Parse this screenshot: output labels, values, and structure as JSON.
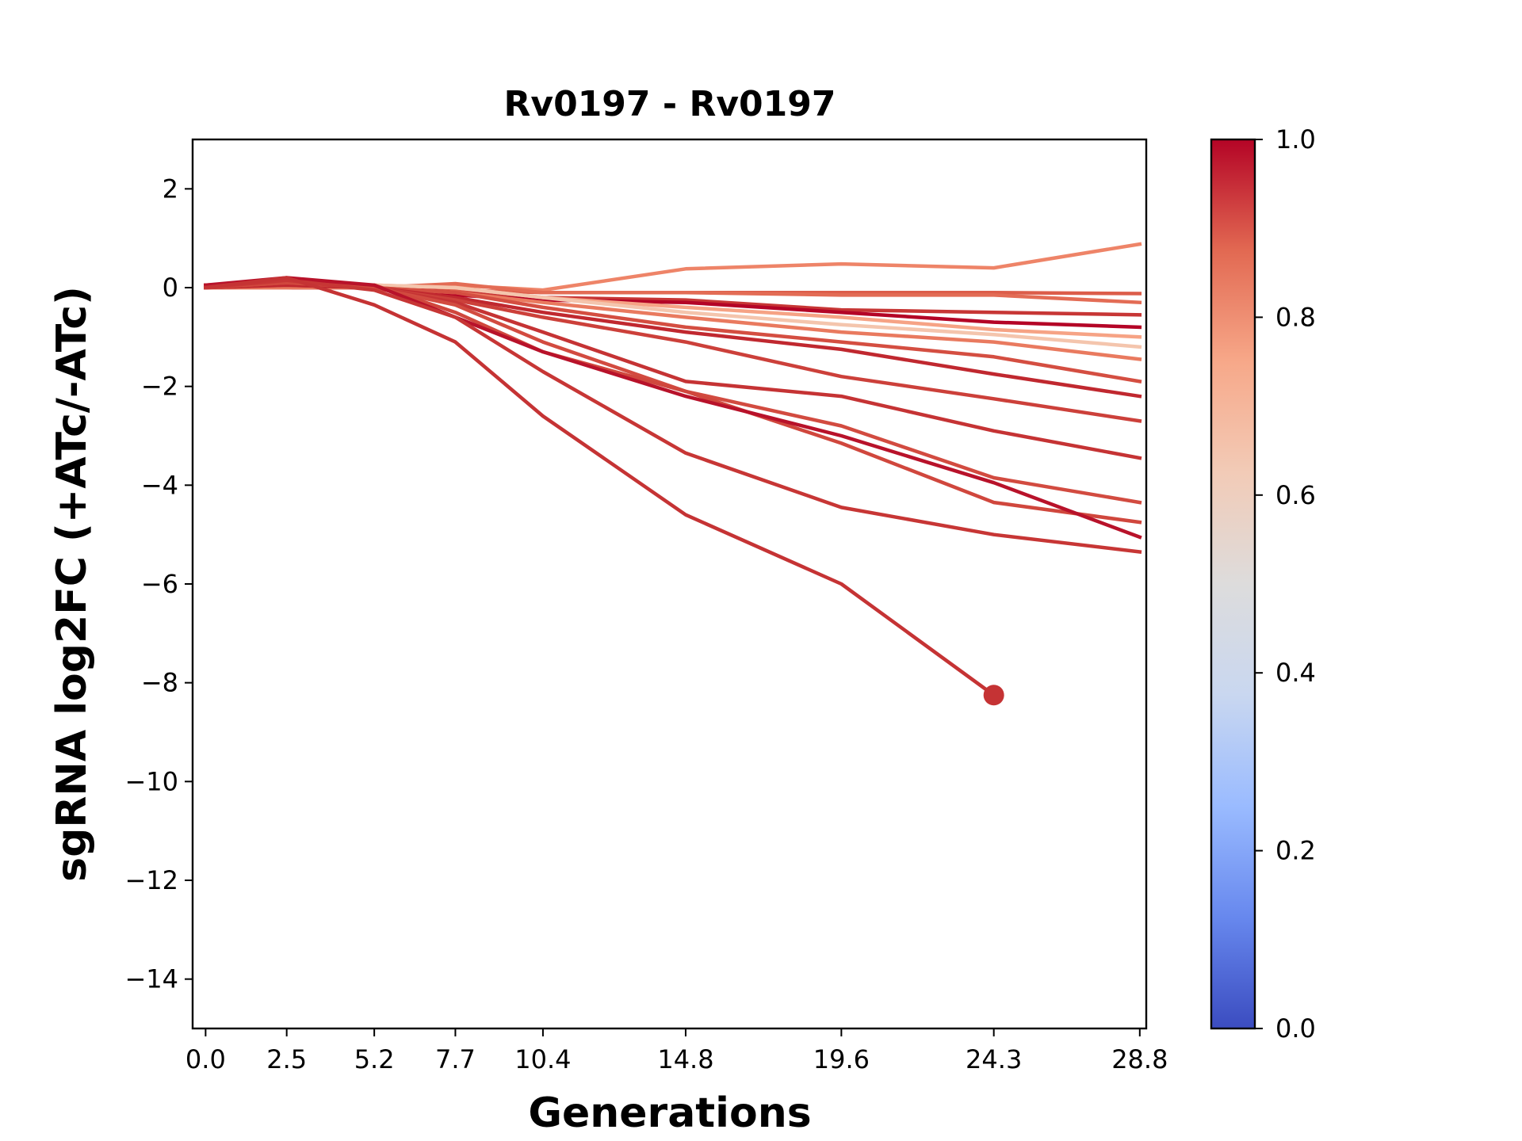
{
  "chart_data": {
    "type": "line",
    "title": "Rv0197 - Rv0197",
    "xlabel": "Generations",
    "ylabel": "sgRNA log2FC (+ATc/-ATc)",
    "x": [
      0.0,
      2.5,
      5.2,
      7.7,
      10.4,
      14.8,
      19.6,
      24.3,
      28.8
    ],
    "x_tick_labels": [
      "0.0",
      "2.5",
      "5.2",
      "7.7",
      "10.4",
      "14.8",
      "19.6",
      "24.3",
      "28.8"
    ],
    "ylim": [
      -15,
      3
    ],
    "y_ticks": [
      2,
      0,
      -2,
      -4,
      -6,
      -8,
      -10,
      -12,
      -14
    ],
    "y_tick_labels": [
      "2",
      "0",
      "−2",
      "−4",
      "−6",
      "−8",
      "−10",
      "−12",
      "−14"
    ],
    "grid": false,
    "legend": "none",
    "series": [
      {
        "color": "#ee8468",
        "values": [
          0.0,
          0.05,
          0.0,
          0.05,
          -0.05,
          0.38,
          0.48,
          0.4,
          0.88
        ]
      },
      {
        "color": "#dc5d4a",
        "values": [
          0.05,
          0.1,
          0.0,
          -0.05,
          -0.1,
          -0.1,
          -0.1,
          -0.1,
          -0.12
        ]
      },
      {
        "color": "#e36c55",
        "values": [
          0.0,
          0.0,
          0.0,
          0.08,
          -0.1,
          -0.1,
          -0.15,
          -0.15,
          -0.3
        ]
      },
      {
        "color": "#c73635",
        "values": [
          0.05,
          0.05,
          0.05,
          -0.1,
          -0.2,
          -0.25,
          -0.45,
          -0.5,
          -0.55
        ]
      },
      {
        "color": "#b40426",
        "values": [
          0.0,
          0.0,
          0.0,
          -0.15,
          -0.25,
          -0.3,
          -0.5,
          -0.7,
          -0.8
        ]
      },
      {
        "color": "#f6a385",
        "values": [
          0.0,
          0.0,
          0.05,
          0.0,
          -0.2,
          -0.4,
          -0.6,
          -0.85,
          -1.0
        ]
      },
      {
        "color": "#f4c5ad",
        "values": [
          0.0,
          0.0,
          0.05,
          0.0,
          -0.2,
          -0.5,
          -0.75,
          -0.95,
          -1.2
        ]
      },
      {
        "color": "#e97a5f",
        "values": [
          0.0,
          0.0,
          0.0,
          -0.1,
          -0.3,
          -0.6,
          -0.9,
          -1.1,
          -1.45
        ]
      },
      {
        "color": "#d44e41",
        "values": [
          0.0,
          0.05,
          0.0,
          -0.1,
          -0.4,
          -0.8,
          -1.1,
          -1.4,
          -1.9
        ]
      },
      {
        "color": "#c0282f",
        "values": [
          0.0,
          0.05,
          0.0,
          -0.2,
          -0.5,
          -0.9,
          -1.25,
          -1.75,
          -2.2
        ]
      },
      {
        "color": "#cc403a",
        "values": [
          0.0,
          0.1,
          0.0,
          -0.25,
          -0.6,
          -1.1,
          -1.8,
          -2.25,
          -2.7
        ]
      },
      {
        "color": "#c53334",
        "values": [
          0.05,
          0.15,
          0.0,
          -0.3,
          -0.9,
          -1.9,
          -2.2,
          -2.9,
          -3.45
        ]
      },
      {
        "color": "#d24b40",
        "values": [
          0.0,
          0.1,
          0.0,
          -0.35,
          -1.1,
          -2.1,
          -2.8,
          -3.85,
          -4.35
        ]
      },
      {
        "color": "#d0473d",
        "values": [
          0.0,
          0.1,
          0.05,
          -0.5,
          -1.3,
          -2.1,
          -3.15,
          -4.35,
          -4.75
        ]
      },
      {
        "color": "#b8122a",
        "values": [
          0.05,
          0.2,
          0.05,
          -0.6,
          -1.3,
          -2.2,
          -3.0,
          -3.95,
          -5.05
        ]
      },
      {
        "color": "#c73635",
        "values": [
          0.0,
          0.15,
          -0.05,
          -0.6,
          -1.7,
          -3.35,
          -4.45,
          -5.0,
          -5.35
        ]
      },
      {
        "color": "#c53334",
        "values": [
          0.0,
          0.2,
          -0.35,
          -1.1,
          -2.6,
          -4.6,
          -6.0,
          -8.25,
          null
        ]
      }
    ],
    "markers": [
      {
        "x": 24.3,
        "y": -8.25,
        "color": "#c53334"
      }
    ],
    "colorbar": {
      "range": [
        0.0,
        1.0
      ],
      "ticks": [
        0.0,
        0.2,
        0.4,
        0.6,
        0.8,
        1.0
      ],
      "tick_labels": [
        "0.0",
        "0.2",
        "0.4",
        "0.6",
        "0.8",
        "1.0"
      ],
      "colormap": "coolwarm",
      "stops": [
        "#3b4cc0",
        "#6788ee",
        "#9abbff",
        "#c9d7f0",
        "#dddcdc",
        "#f2cbb7",
        "#f7a889",
        "#e26952",
        "#b40426"
      ]
    }
  }
}
